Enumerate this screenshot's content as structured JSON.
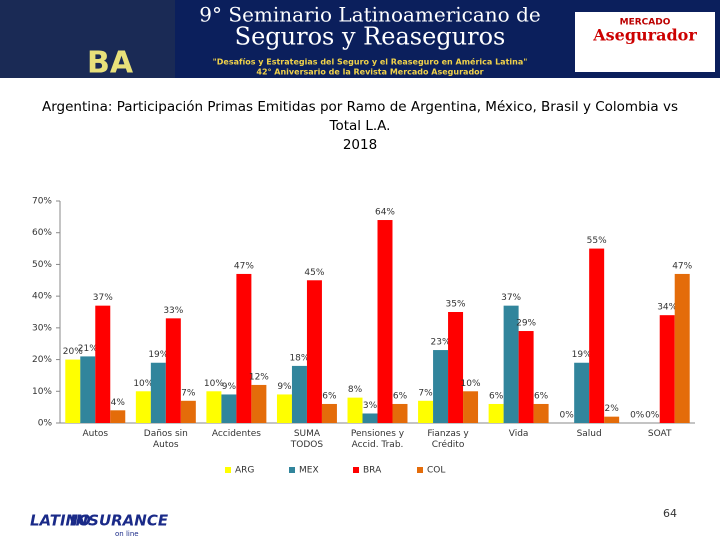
{
  "header": {
    "line1": "9° Seminario Latinoamericano de",
    "line2": "Seguros y Reaseguros",
    "line3": "\"Desafíos y Estrategias del Seguro y el Reaseguro en América Latina\"",
    "line4": "42° Aniversario de la Revista Mercado Asegurador",
    "brand1": "MERCADO",
    "brand2": "Asegurador",
    "mark": "BA"
  },
  "footer": {
    "logo1": "LATINO",
    "logo2": "INSURANCE",
    "logo3": "on line",
    "page": "64"
  },
  "chart_data": {
    "type": "bar",
    "title": "Argentina: Participación Primas Emitidas por Ramo de Argentina, México, Brasil y Colombia vs Total L.A.",
    "subtitle": "2018",
    "categories": [
      "Autos",
      "Daños sin Autos",
      "Accidentes",
      "SUMA TODOS",
      "Pensiones y Accid. Trab.",
      "Fianzas y Crédito",
      "Vida",
      "Salud",
      "SOAT"
    ],
    "series": [
      {
        "name": "ARG",
        "color": "#ffff00",
        "values": [
          20,
          10,
          10,
          9,
          8,
          7,
          6,
          0,
          0
        ],
        "value_labels": [
          "20%",
          "10%",
          "10%",
          "9%",
          "8%",
          "7%",
          "6%",
          "0%",
          "0%"
        ]
      },
      {
        "name": "MEX",
        "color": "#31859c",
        "values": [
          21,
          19,
          9,
          18,
          3,
          23,
          37,
          19,
          0
        ],
        "value_labels": [
          "21%",
          "19%",
          "9%",
          "18%",
          "3%",
          "23%",
          "37%",
          "19%",
          "0%"
        ]
      },
      {
        "name": "BRA",
        "color": "#ff0000",
        "values": [
          37,
          33,
          47,
          45,
          64,
          35,
          29,
          55,
          34
        ],
        "value_labels": [
          "37%",
          "33%",
          "47%",
          "45%",
          "64%",
          "35%",
          "29%",
          "55%",
          "34%"
        ]
      },
      {
        "name": "COL",
        "color": "#e46c0a",
        "values": [
          4,
          7,
          12,
          6,
          6,
          10,
          6,
          2,
          47
        ],
        "value_labels": [
          "4%",
          "7%",
          "12%",
          "6%",
          "6%",
          "10%",
          "6%",
          "2%",
          "47%"
        ]
      }
    ],
    "ylim": [
      0,
      70
    ],
    "yticks": [
      {
        "value": 0,
        "label": "0%"
      },
      {
        "value": 10,
        "label": "10%"
      },
      {
        "value": 20,
        "label": "20%"
      },
      {
        "value": 30,
        "label": "30%"
      },
      {
        "value": 40,
        "label": "40%"
      },
      {
        "value": 50,
        "label": "50%"
      },
      {
        "value": 60,
        "label": "60%"
      },
      {
        "value": 70,
        "label": "70%"
      }
    ],
    "legend": "bottom"
  }
}
